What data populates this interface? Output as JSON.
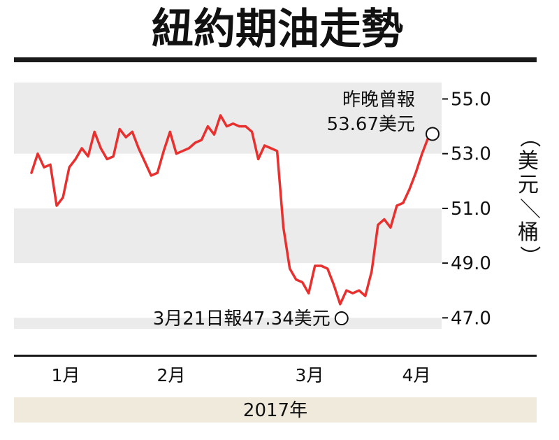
{
  "chart_data": {
    "type": "line",
    "title": "紐約期油走勢",
    "unit_label": "（美元／桶）",
    "y_ticks": [
      "55.0",
      "53.0",
      "51.0",
      "49.0",
      "47.0"
    ],
    "ylim": [
      46.6,
      55.6
    ],
    "x_month_labels": [
      "1月",
      "2月",
      "3月",
      "4月"
    ],
    "year_label": "2017年",
    "grid": "alternating horizontal bands",
    "series": [
      {
        "color": "#e8302f",
        "values": [
          52.3,
          53.0,
          52.5,
          52.6,
          51.1,
          51.4,
          52.5,
          52.8,
          53.2,
          52.9,
          53.8,
          53.2,
          52.8,
          52.9,
          53.9,
          53.6,
          53.8,
          53.2,
          52.7,
          52.2,
          52.3,
          53.1,
          53.8,
          53.0,
          53.1,
          53.2,
          53.4,
          53.5,
          54.0,
          53.7,
          54.4,
          54.0,
          54.1,
          54.0,
          54.0,
          53.8,
          52.8,
          53.3,
          53.2,
          53.1,
          50.3,
          48.8,
          48.4,
          48.3,
          47.9,
          48.9,
          48.9,
          48.8,
          48.2,
          47.5,
          48.0,
          47.9,
          48.0,
          47.8,
          48.7,
          50.4,
          50.6,
          50.3,
          51.1,
          51.2,
          51.7,
          52.3,
          53.0,
          53.6
        ]
      }
    ],
    "annotations": [
      {
        "label": "3月21日報47.34美元",
        "index": 49,
        "value": 47.34
      },
      {
        "label_line1": "昨晚曾報",
        "label_line2": "53.67美元",
        "index": 63,
        "value": 53.67
      }
    ]
  }
}
